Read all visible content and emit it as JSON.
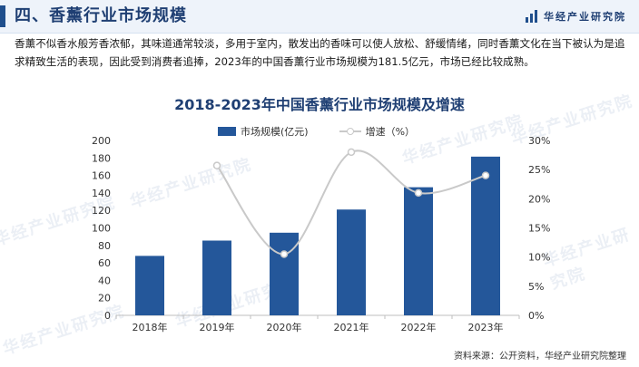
{
  "header": {
    "title": "四、香薰行业市场规模",
    "brand": "华经产业研究院",
    "brand_color": "#1f4e8c"
  },
  "intro_text": "香薰不似香水般芳香浓郁，其味道通常较淡，多用于室内，散发出的香味可以使人放松、舒缓情绪，同时香薰文化在当下被认为是追求精致生活的表现，因此受到消费者追捧，2023年的中国香薰行业市场规模为181.5亿元，市场已经比较成熟。",
  "watermark_text": "华经产业研究院",
  "source_text": "资料来源：公开资料，华经产业研究院整理",
  "chart_data": {
    "type": "bar",
    "title": "2018-2023年中国香薰行业市场规模及增速",
    "categories": [
      "2018年",
      "2019年",
      "2020年",
      "2021年",
      "2022年",
      "2023年"
    ],
    "series": [
      {
        "name": "市场规模(亿元)",
        "type": "bar",
        "axis": "left",
        "color": "#24579a",
        "values": [
          68,
          85.5,
          94.5,
          121,
          146.5,
          181.5
        ]
      },
      {
        "name": "增速（%）",
        "type": "line",
        "axis": "right",
        "color": "#c9c9c9",
        "values": [
          null,
          25.7,
          10.5,
          28.0,
          21.0,
          24.0
        ]
      }
    ],
    "y_left": {
      "min": 0,
      "max": 200,
      "step": 20,
      "ticks": [
        "0",
        "20",
        "40",
        "60",
        "80",
        "100",
        "120",
        "140",
        "160",
        "180",
        "200"
      ]
    },
    "y_right": {
      "min": 0,
      "max": 30,
      "step": 5,
      "ticks": [
        "0%",
        "5%",
        "10%",
        "15%",
        "20%",
        "25%",
        "30%"
      ]
    },
    "grid": false,
    "legend_position": "top"
  }
}
